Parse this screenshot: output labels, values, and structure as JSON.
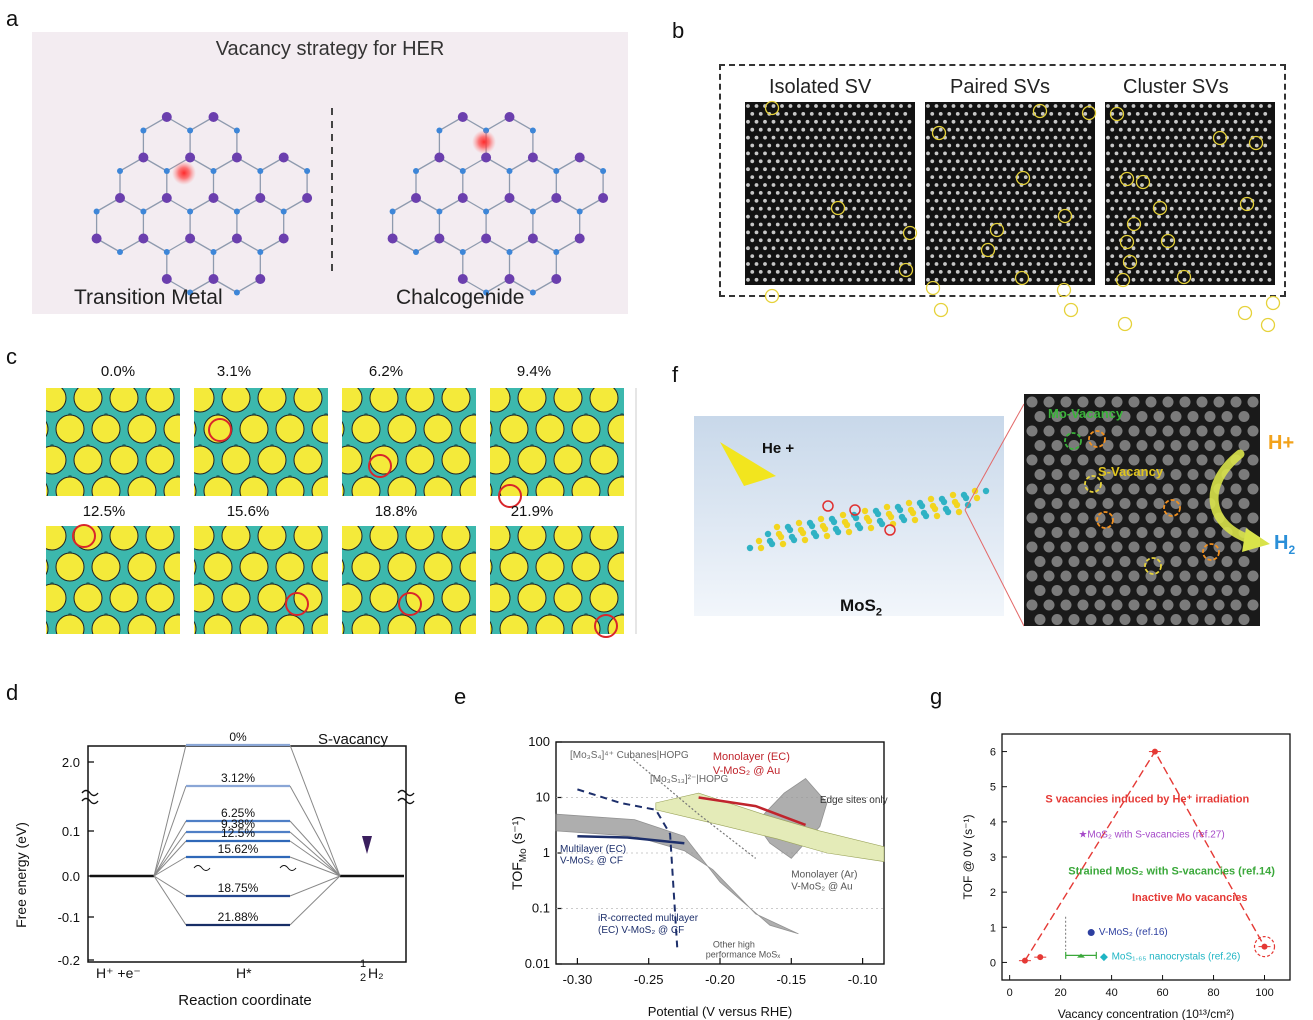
{
  "panel_labels": {
    "a": "a",
    "b": "b",
    "c": "c",
    "d": "d",
    "e": "e",
    "f": "f",
    "g": "g"
  },
  "panel_a": {
    "title": "Vacancy strategy for HER",
    "left_label": "Transition Metal",
    "right_label": "Chalcogenide"
  },
  "panel_b": {
    "titles": [
      "Isolated SV",
      "Paired SVs",
      "Cluster SVs"
    ]
  },
  "panel_c": {
    "concentrations": [
      "0.0%",
      "3.1%",
      "6.2%",
      "9.4%",
      "12.5%",
      "15.6%",
      "18.8%",
      "21.9%"
    ]
  },
  "panel_d": {
    "ylabel": "Free energy (eV)",
    "xlabel": "Reaction coordinate",
    "x_labels": {
      "left": "H⁺  +e⁻",
      "mid": "H*",
      "right_num": "1",
      "right_den": "2",
      "right_tail": "H₂"
    },
    "annotation": "S-vacancy",
    "y_ticks": [
      "2.0",
      "0.1",
      "0.0",
      "-0.1",
      "-0.2"
    ],
    "levels": [
      "0%",
      "3.12%",
      "6.25%",
      "9.38%",
      "12.5%",
      "15.62%",
      "18.75%",
      "21.88%"
    ]
  },
  "panel_e": {
    "ylabel": "TOF",
    "ylabel_sub": "Mo",
    "ylabel_unit": " (s⁻¹)",
    "xlabel": "Potential (V versus RHE)",
    "x_ticks": [
      "-0.30",
      "-0.25",
      "-0.20",
      "-0.15",
      "-0.10"
    ],
    "y_ticks": [
      "100",
      "10",
      "1",
      "0.1",
      "0.01"
    ],
    "annotations": {
      "cubanes": "[Mo₃S₄]⁴⁺ Cubanes|HOPG",
      "mo3s13": "[Mo₃S₁₃]²⁻|HOPG",
      "mono_ec_1": "Monolayer (EC)",
      "mono_ec_2": "V-MoS₂ @ Au",
      "edge": "Edge sites only",
      "multi_ec_1": "Multilayer (EC)",
      "multi_ec_2": "V-MoS₂ @ CF",
      "mono_ar_1": "Monolayer (Ar)",
      "mono_ar_2": "V-MoS₂ @ Au",
      "ir_1": "iR-corrected multilayer",
      "ir_2": "(EC) V-MoS₂ @ CF",
      "other_1": "Other high",
      "other_2": "performance MoSₓ"
    },
    "colors": {
      "red": "#c0242c",
      "navy": "#1d2f6b",
      "grey": "#9a9a9a",
      "yellowgreen": "#e4ebb8"
    }
  },
  "panel_f": {
    "ion": "He +",
    "material": "MoS",
    "material_sub": "2",
    "mo_vacancy": "Mo-Vacancy",
    "s_vacancy": "S-Vacancy",
    "hplus": "H+",
    "h2": "H",
    "h2_sub": "2"
  },
  "panel_g": {
    "ylabel": "TOF @ 0V (s⁻¹)",
    "xlabel": "Vacancy concentration (10¹³/cm²)",
    "x_ticks": [
      "0",
      "20",
      "40",
      "60",
      "80",
      "100"
    ],
    "y_ticks": [
      "0",
      "1",
      "2",
      "3",
      "4",
      "5",
      "6"
    ],
    "annotations": {
      "he": "S vacancies induced by He⁺ irradiation",
      "mos2_sv": "★MoS₂ with S-vacancies (ref.27)",
      "strained": "Strained MoS₂ with S-vacancies (ref.14)",
      "inactive": "Inactive Mo vacancies",
      "vmos2": "V-MoS₂ (ref.16)",
      "nano": "MoS₁.₆₅ nanocrystals (ref.26)"
    },
    "colors": {
      "red": "#e53935",
      "purple": "#a64ac9",
      "green": "#3aa83a",
      "blue": "#2d3fa0",
      "cyan": "#1fb5c4"
    }
  }
}
